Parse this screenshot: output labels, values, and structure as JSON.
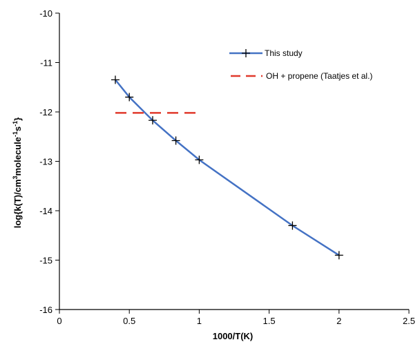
{
  "chart_data": {
    "type": "line",
    "xlabel": "1000/T(K)",
    "ylabel": {
      "prefix": "log{k(T)/cm",
      "sup1": "3",
      "mid": "molecule",
      "sup2": "-1",
      "mid2": "s",
      "sup3": "-1",
      "suffix": "}"
    },
    "xlim": [
      0,
      2.5
    ],
    "ylim": [
      -16,
      -10
    ],
    "xticks": [
      "0",
      "0.5",
      "1",
      "1.5",
      "2",
      "2.5"
    ],
    "xtick_values": [
      0,
      0.5,
      1,
      1.5,
      2,
      2.5
    ],
    "yticks": [
      "-10",
      "-11",
      "-12",
      "-13",
      "-14",
      "-15",
      "-16"
    ],
    "ytick_values": [
      -10,
      -11,
      -12,
      -13,
      -14,
      -15,
      -16
    ],
    "legend_position": "top-right",
    "grid": false,
    "series": [
      {
        "name": "This study",
        "color": "#4472C4",
        "marker": "plus",
        "line_style": "solid",
        "x": [
          0.4,
          0.5,
          0.667,
          0.833,
          1.0,
          1.667,
          2.0
        ],
        "y": [
          -11.35,
          -11.7,
          -12.17,
          -12.58,
          -12.97,
          -14.3,
          -14.9
        ]
      },
      {
        "name": "OH + propene (Taatjes et al.)",
        "color": "#E0392B",
        "marker": "none",
        "line_style": "dashed",
        "x": [
          0.4,
          1.0
        ],
        "y": [
          -12.02,
          -12.02
        ]
      }
    ]
  }
}
